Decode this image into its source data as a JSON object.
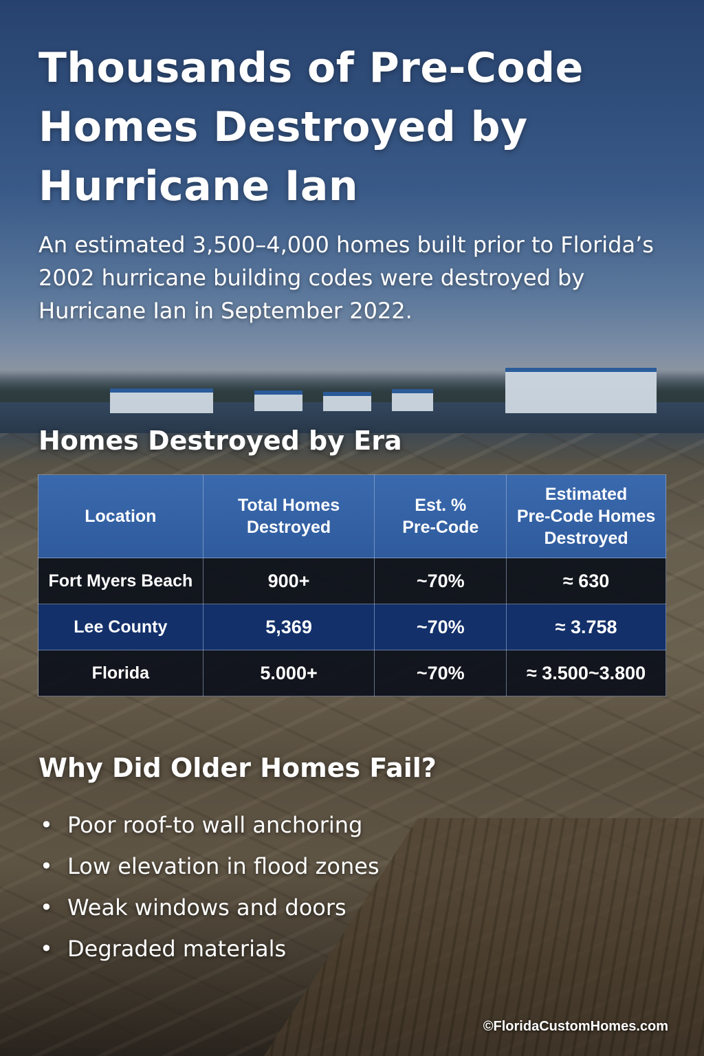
{
  "title": "Thousands of Pre-Code Homes Destroyed by Hurricane Ian",
  "subtitle": "An estimated 3,500–4,000 homes built prior to Florida’s 2002 hurricane building codes were destroyed by Hurricane Ian in September 2022.",
  "era_section": {
    "heading": "Homes Destroyed by Era",
    "table": {
      "headers": {
        "location": "Location",
        "total_line1": "Total Homes",
        "total_line2": "Destroyed",
        "pct_line1": "Est. %",
        "pct_line2": "Pre-Code",
        "est_line1": "Estimated",
        "est_line2": "Pre-Code Homes",
        "est_line3": "Destroyed"
      },
      "rows": [
        {
          "location": "Fort Myers Beach",
          "total": "900+",
          "pct": "~70%",
          "est": "≈ 630"
        },
        {
          "location": "Lee County",
          "total": "5,369",
          "pct": "~70%",
          "est": "≈ 3.758"
        },
        {
          "location": "Florida",
          "total": "5.000+",
          "pct": "~70%",
          "est": "≈ 3.500~3.800"
        }
      ]
    }
  },
  "why_section": {
    "heading": "Why Did Older Homes Fail?",
    "bullet": "•",
    "items": [
      "Poor roof-to wall anchoring",
      "Low elevation in flood zones",
      "Weak windows and doors",
      "Degraded materials"
    ]
  },
  "credit": "©FloridaCustomHomes.com",
  "colors": {
    "header_blue": "#3a69ad",
    "row_dark": "#0c101a",
    "row_blue": "#13306a",
    "sky_top": "#2c4a7a"
  }
}
